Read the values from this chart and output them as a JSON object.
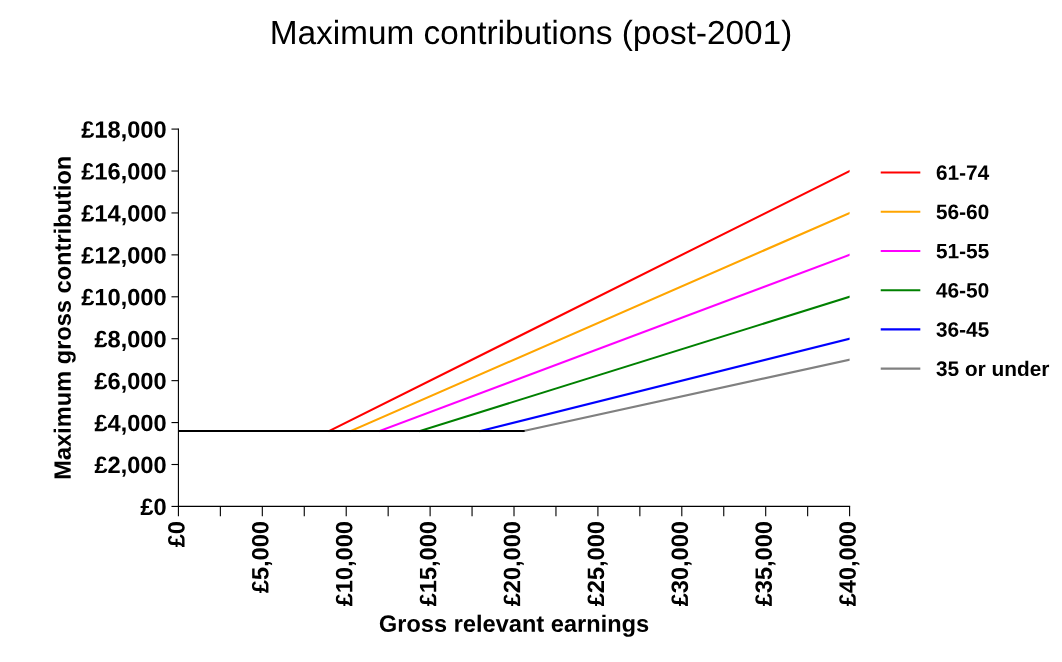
{
  "chart_data": {
    "type": "line",
    "title": "Maximum contributions (post-2001)",
    "xlabel": "Gross relevant earnings",
    "ylabel": "Maximum gross contribution",
    "series": [
      {
        "name": "61-74",
        "color": "#ff0000",
        "x": [
          9000,
          40000
        ],
        "values": [
          3600,
          16000
        ]
      },
      {
        "name": "56-60",
        "color": "#ffa500",
        "x": [
          10286,
          40000
        ],
        "values": [
          3600,
          14000
        ]
      },
      {
        "name": "51-55",
        "color": "#ff00ff",
        "x": [
          12000,
          40000
        ],
        "values": [
          3600,
          12000
        ]
      },
      {
        "name": "46-50",
        "color": "#008000",
        "x": [
          14400,
          40000
        ],
        "values": [
          3600,
          10000
        ]
      },
      {
        "name": "36-45",
        "color": "#0000ff",
        "x": [
          18000,
          40000
        ],
        "values": [
          3600,
          8000
        ]
      },
      {
        "name": "35 or under",
        "color": "#808080",
        "x": [
          20571,
          40000
        ],
        "values": [
          3600,
          7000
        ]
      },
      {
        "color": "#000000",
        "x": [
          0,
          20571
        ],
        "values": [
          3600,
          3600
        ]
      }
    ],
    "xlim": [
      0,
      40000
    ],
    "ylim": [
      0,
      18000
    ],
    "xticks": [
      {
        "value": 0,
        "label": "£0"
      },
      {
        "value": 2500,
        "label": null
      },
      {
        "value": 5000,
        "label": "£5,000"
      },
      {
        "value": 7500,
        "label": null
      },
      {
        "value": 10000,
        "label": "£10,000"
      },
      {
        "value": 12500,
        "label": null
      },
      {
        "value": 15000,
        "label": "£15,000"
      },
      {
        "value": 17500,
        "label": null
      },
      {
        "value": 20000,
        "label": "£20,000"
      },
      {
        "value": 22500,
        "label": null
      },
      {
        "value": 25000,
        "label": "£25,000"
      },
      {
        "value": 27500,
        "label": null
      },
      {
        "value": 30000,
        "label": "£30,000"
      },
      {
        "value": 32500,
        "label": null
      },
      {
        "value": 35000,
        "label": "£35,000"
      },
      {
        "value": 37500,
        "label": null
      },
      {
        "value": 40000,
        "label": "£40,000"
      }
    ],
    "yticks": [
      {
        "value": 0,
        "label": "£0"
      },
      {
        "value": 2000,
        "label": "£2,000"
      },
      {
        "value": 4000,
        "label": "£4,000"
      },
      {
        "value": 6000,
        "label": "£6,000"
      },
      {
        "value": 8000,
        "label": "£8,000"
      },
      {
        "value": 10000,
        "label": "£10,000"
      },
      {
        "value": 12000,
        "label": "£12,000"
      },
      {
        "value": 14000,
        "label": "£14,000"
      },
      {
        "value": 16000,
        "label": "£16,000"
      },
      {
        "value": 18000,
        "label": "£18,000"
      }
    ],
    "grid": false,
    "legend": "right",
    "marker": "none",
    "line_style": "solid"
  }
}
